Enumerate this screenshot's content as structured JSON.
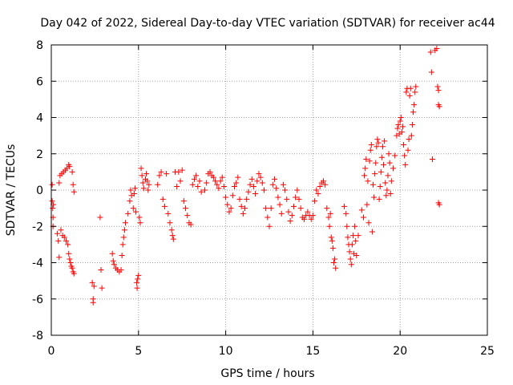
{
  "chart_data": {
    "type": "scatter",
    "title": "Day 042 of 2022, Sidereal Day-to-day VTEC variation (SDTVAR) for receiver ac44",
    "xlabel": "GPS time / hours",
    "ylabel": "SDTVAR / TECUs",
    "xlim": [
      0,
      25
    ],
    "ylim": [
      -8,
      8
    ],
    "xticks": [
      0,
      5,
      10,
      15,
      20,
      25
    ],
    "yticks": [
      -8,
      -6,
      -4,
      -2,
      0,
      2,
      4,
      6,
      8
    ],
    "grid": true,
    "marker": "+",
    "colors": {
      "points": "#ff0000",
      "grid": "#a0a0a0",
      "axes": "#000000"
    },
    "series": [
      {
        "name": "SDTVAR",
        "points": [
          [
            0.05,
            0.3
          ],
          [
            0.05,
            -0.6
          ],
          [
            0.08,
            -1.0
          ],
          [
            0.1,
            -1.5
          ],
          [
            0.1,
            -2.0
          ],
          [
            0.12,
            -0.8
          ],
          [
            0.35,
            -2.4
          ],
          [
            0.4,
            -2.8
          ],
          [
            0.45,
            -3.7
          ],
          [
            0.45,
            0.4
          ],
          [
            0.5,
            0.8
          ],
          [
            0.55,
            -2.2
          ],
          [
            0.6,
            0.9
          ],
          [
            0.65,
            -2.5
          ],
          [
            0.7,
            1.0
          ],
          [
            0.75,
            -2.6
          ],
          [
            0.8,
            1.1
          ],
          [
            0.85,
            -2.8
          ],
          [
            0.9,
            1.2
          ],
          [
            0.95,
            -3.0
          ],
          [
            1.0,
            1.4
          ],
          [
            1.0,
            -3.5
          ],
          [
            1.05,
            1.3
          ],
          [
            1.05,
            -3.8
          ],
          [
            1.1,
            -4.0
          ],
          [
            1.15,
            -4.2
          ],
          [
            1.2,
            1.0
          ],
          [
            1.2,
            -4.3
          ],
          [
            1.25,
            0.3
          ],
          [
            1.25,
            -4.5
          ],
          [
            1.3,
            -0.1
          ],
          [
            1.3,
            -4.6
          ],
          [
            2.35,
            -5.1
          ],
          [
            2.4,
            -6.0
          ],
          [
            2.4,
            -6.2
          ],
          [
            2.45,
            -5.3
          ],
          [
            2.8,
            -1.5
          ],
          [
            2.85,
            -4.4
          ],
          [
            2.9,
            -5.4
          ],
          [
            3.5,
            -3.5
          ],
          [
            3.55,
            -3.9
          ],
          [
            3.6,
            -4.1
          ],
          [
            3.7,
            -4.3
          ],
          [
            3.8,
            -4.4
          ],
          [
            3.9,
            -4.5
          ],
          [
            4.0,
            -4.4
          ],
          [
            4.05,
            -3.6
          ],
          [
            4.1,
            -3.0
          ],
          [
            4.15,
            -2.6
          ],
          [
            4.2,
            -2.2
          ],
          [
            4.25,
            -1.8
          ],
          [
            4.4,
            -1.3
          ],
          [
            4.5,
            -0.6
          ],
          [
            4.55,
            0.0
          ],
          [
            4.6,
            -0.3
          ],
          [
            4.7,
            -1.0
          ],
          [
            4.75,
            -0.2
          ],
          [
            4.8,
            0.1
          ],
          [
            4.85,
            -1.2
          ],
          [
            4.9,
            -5.1
          ],
          [
            4.92,
            -5.4
          ],
          [
            4.95,
            -4.9
          ],
          [
            5.0,
            -4.7
          ],
          [
            5.05,
            -1.5
          ],
          [
            5.1,
            -1.8
          ],
          [
            5.15,
            1.2
          ],
          [
            5.2,
            0.8
          ],
          [
            5.25,
            0.4
          ],
          [
            5.3,
            0.1
          ],
          [
            5.4,
            0.6
          ],
          [
            5.45,
            0.9
          ],
          [
            5.5,
            0.5
          ],
          [
            5.55,
            0.0
          ],
          [
            5.6,
            0.3
          ],
          [
            6.1,
            0.3
          ],
          [
            6.2,
            0.8
          ],
          [
            6.3,
            1.0
          ],
          [
            6.4,
            -0.5
          ],
          [
            6.5,
            -0.9
          ],
          [
            6.6,
            0.9
          ],
          [
            6.7,
            -1.3
          ],
          [
            6.8,
            -1.8
          ],
          [
            6.9,
            -2.2
          ],
          [
            6.95,
            -2.5
          ],
          [
            7.0,
            -2.7
          ],
          [
            7.1,
            1.0
          ],
          [
            7.2,
            0.2
          ],
          [
            7.3,
            1.0
          ],
          [
            7.4,
            0.5
          ],
          [
            7.5,
            1.1
          ],
          [
            7.6,
            -0.6
          ],
          [
            7.7,
            -1.0
          ],
          [
            7.8,
            -1.4
          ],
          [
            7.9,
            -1.8
          ],
          [
            8.0,
            -1.9
          ],
          [
            8.1,
            0.3
          ],
          [
            8.2,
            0.6
          ],
          [
            8.3,
            0.8
          ],
          [
            8.4,
            0.2
          ],
          [
            8.5,
            0.5
          ],
          [
            8.6,
            -0.1
          ],
          [
            8.8,
            0.0
          ],
          [
            8.9,
            0.4
          ],
          [
            9.0,
            0.9
          ],
          [
            9.1,
            1.0
          ],
          [
            9.2,
            0.8
          ],
          [
            9.3,
            0.7
          ],
          [
            9.4,
            0.5
          ],
          [
            9.5,
            0.3
          ],
          [
            9.6,
            0.1
          ],
          [
            9.7,
            0.5
          ],
          [
            9.8,
            0.7
          ],
          [
            9.9,
            0.2
          ],
          [
            10.0,
            -0.4
          ],
          [
            10.1,
            -0.8
          ],
          [
            10.2,
            -1.2
          ],
          [
            10.3,
            -1.0
          ],
          [
            10.4,
            -0.3
          ],
          [
            10.5,
            0.2
          ],
          [
            10.6,
            0.4
          ],
          [
            10.7,
            0.7
          ],
          [
            10.8,
            -0.5
          ],
          [
            10.9,
            -0.9
          ],
          [
            11.0,
            -1.3
          ],
          [
            11.1,
            -1.0
          ],
          [
            11.2,
            -0.5
          ],
          [
            11.3,
            -0.1
          ],
          [
            11.4,
            0.3
          ],
          [
            11.5,
            0.6
          ],
          [
            11.6,
            0.2
          ],
          [
            11.7,
            -0.2
          ],
          [
            11.8,
            0.5
          ],
          [
            11.9,
            0.9
          ],
          [
            12.0,
            0.7
          ],
          [
            12.1,
            0.4
          ],
          [
            12.2,
            0.0
          ],
          [
            12.3,
            -1.0
          ],
          [
            12.4,
            -1.5
          ],
          [
            12.5,
            -2.0
          ],
          [
            12.6,
            -1.0
          ],
          [
            12.7,
            0.3
          ],
          [
            12.8,
            0.6
          ],
          [
            12.9,
            0.1
          ],
          [
            13.0,
            -0.4
          ],
          [
            13.1,
            -0.8
          ],
          [
            13.2,
            -1.3
          ],
          [
            13.3,
            0.3
          ],
          [
            13.4,
            0.0
          ],
          [
            13.5,
            -0.5
          ],
          [
            13.6,
            -1.2
          ],
          [
            13.7,
            -1.7
          ],
          [
            13.8,
            -1.4
          ],
          [
            13.9,
            -0.9
          ],
          [
            14.0,
            -0.4
          ],
          [
            14.1,
            0.0
          ],
          [
            14.2,
            -0.5
          ],
          [
            14.3,
            -1.0
          ],
          [
            14.4,
            -1.5
          ],
          [
            14.5,
            -1.6
          ],
          [
            14.6,
            -1.4
          ],
          [
            14.7,
            -1.2
          ],
          [
            14.8,
            -1.4
          ],
          [
            14.9,
            -1.6
          ],
          [
            15.0,
            -1.4
          ],
          [
            15.1,
            -0.6
          ],
          [
            15.2,
            0.0
          ],
          [
            15.3,
            -0.2
          ],
          [
            15.4,
            0.2
          ],
          [
            15.5,
            0.4
          ],
          [
            15.6,
            0.5
          ],
          [
            15.7,
            0.3
          ],
          [
            15.8,
            -1.0
          ],
          [
            15.9,
            -1.5
          ],
          [
            15.95,
            -2.0
          ],
          [
            16.0,
            -1.3
          ],
          [
            16.05,
            -2.6
          ],
          [
            16.1,
            -2.8
          ],
          [
            16.15,
            -3.2
          ],
          [
            16.2,
            -4.0
          ],
          [
            16.25,
            -3.8
          ],
          [
            16.3,
            -4.3
          ],
          [
            16.8,
            -0.9
          ],
          [
            16.9,
            -1.3
          ],
          [
            16.95,
            -2.0
          ],
          [
            17.0,
            -2.6
          ],
          [
            17.05,
            -3.0
          ],
          [
            17.1,
            -3.4
          ],
          [
            17.15,
            -3.8
          ],
          [
            17.2,
            -4.1
          ],
          [
            17.25,
            -3.0
          ],
          [
            17.3,
            -2.5
          ],
          [
            17.35,
            -3.5
          ],
          [
            17.4,
            -2.0
          ],
          [
            17.45,
            -2.8
          ],
          [
            17.5,
            -3.6
          ],
          [
            17.6,
            -2.5
          ],
          [
            17.8,
            -1.1
          ],
          [
            17.9,
            -1.5
          ],
          [
            17.95,
            0.8
          ],
          [
            18.0,
            1.2
          ],
          [
            18.05,
            1.7
          ],
          [
            18.1,
            -0.8
          ],
          [
            18.15,
            0.5
          ],
          [
            18.2,
            -1.8
          ],
          [
            18.25,
            1.6
          ],
          [
            18.3,
            2.2
          ],
          [
            18.35,
            2.5
          ],
          [
            18.4,
            -2.3
          ],
          [
            18.45,
            0.3
          ],
          [
            18.5,
            -0.4
          ],
          [
            18.55,
            0.9
          ],
          [
            18.6,
            1.5
          ],
          [
            18.65,
            2.4
          ],
          [
            18.7,
            2.8
          ],
          [
            18.75,
            2.6
          ],
          [
            18.8,
            -0.5
          ],
          [
            18.85,
            0.2
          ],
          [
            18.9,
            1.0
          ],
          [
            18.95,
            1.8
          ],
          [
            19.0,
            2.4
          ],
          [
            19.05,
            1.4
          ],
          [
            19.1,
            2.7
          ],
          [
            19.15,
            0.4
          ],
          [
            19.2,
            -0.3
          ],
          [
            19.25,
            0.0
          ],
          [
            19.3,
            0.8
          ],
          [
            19.35,
            2.0
          ],
          [
            19.4,
            1.5
          ],
          [
            19.45,
            -0.2
          ],
          [
            19.5,
            0.5
          ],
          [
            19.6,
            1.2
          ],
          [
            19.7,
            1.9
          ],
          [
            19.8,
            3.0
          ],
          [
            19.85,
            3.4
          ],
          [
            19.9,
            3.6
          ],
          [
            19.95,
            3.1
          ],
          [
            20.0,
            3.8
          ],
          [
            20.05,
            4.0
          ],
          [
            20.1,
            3.2
          ],
          [
            20.15,
            3.5
          ],
          [
            20.2,
            2.5
          ],
          [
            20.25,
            1.9
          ],
          [
            20.3,
            1.4
          ],
          [
            20.35,
            5.4
          ],
          [
            20.4,
            5.6
          ],
          [
            20.45,
            2.2
          ],
          [
            20.5,
            2.8
          ],
          [
            20.55,
            5.2
          ],
          [
            20.6,
            5.6
          ],
          [
            20.65,
            3.0
          ],
          [
            20.7,
            3.6
          ],
          [
            20.75,
            4.3
          ],
          [
            20.8,
            4.7
          ],
          [
            20.85,
            5.4
          ],
          [
            20.9,
            5.7
          ],
          [
            21.75,
            7.6
          ],
          [
            21.8,
            6.5
          ],
          [
            21.85,
            1.7
          ],
          [
            22.0,
            7.7
          ],
          [
            22.1,
            7.8
          ],
          [
            22.15,
            5.7
          ],
          [
            22.2,
            5.5
          ],
          [
            22.2,
            4.7
          ],
          [
            22.25,
            4.6
          ],
          [
            22.2,
            -0.7
          ],
          [
            22.25,
            -0.8
          ]
        ]
      }
    ]
  }
}
